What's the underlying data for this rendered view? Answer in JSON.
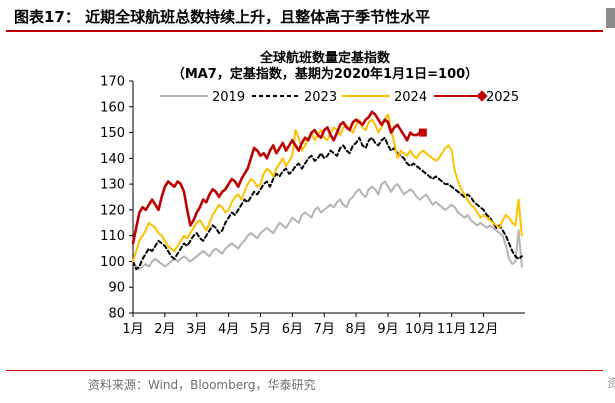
{
  "header": {
    "title": "图表17：  近期全球航班总数持续上升，且整体高于季节性水平",
    "accent_color": "#c00000"
  },
  "source": "资料来源：Wind，Bloomberg，华泰研究",
  "chart_data": {
    "type": "line",
    "title": "全球航班数量定基指数",
    "subtitle": "（MA7，定基指数，基期为2020年1月1日=100）",
    "xlabel": "",
    "ylabel": "",
    "ylim": [
      80,
      170
    ],
    "yticks": [
      80,
      90,
      100,
      110,
      120,
      130,
      140,
      150,
      160,
      170
    ],
    "x_unit": "months (0 = Jan 1, 12 = Dec 31)",
    "xlim": [
      0,
      12.3
    ],
    "x_ticks": [
      {
        "x": 0,
        "label": "1月"
      },
      {
        "x": 1,
        "label": "2月"
      },
      {
        "x": 2,
        "label": "3月"
      },
      {
        "x": 3,
        "label": "4月"
      },
      {
        "x": 4,
        "label": "5月"
      },
      {
        "x": 5,
        "label": "6月"
      },
      {
        "x": 6,
        "label": "7月"
      },
      {
        "x": 7,
        "label": "8月"
      },
      {
        "x": 8,
        "label": "9月"
      },
      {
        "x": 9,
        "label": "10月"
      },
      {
        "x": 10,
        "label": "11月"
      },
      {
        "x": 11,
        "label": "12月"
      }
    ],
    "grid": false,
    "legend": "top",
    "series": [
      {
        "name": "2019",
        "color": "#b4b4b4",
        "style": "solid",
        "x": [
          0,
          0.1,
          0.2,
          0.3,
          0.4,
          0.5,
          0.6,
          0.7,
          0.8,
          0.9,
          1.0,
          1.1,
          1.2,
          1.3,
          1.4,
          1.5,
          1.6,
          1.7,
          1.8,
          1.9,
          2.0,
          2.1,
          2.2,
          2.3,
          2.4,
          2.5,
          2.6,
          2.7,
          2.8,
          2.9,
          3.0,
          3.1,
          3.2,
          3.3,
          3.4,
          3.5,
          3.6,
          3.7,
          3.8,
          3.9,
          4.0,
          4.1,
          4.2,
          4.3,
          4.4,
          4.5,
          4.6,
          4.7,
          4.8,
          4.9,
          5.0,
          5.1,
          5.2,
          5.3,
          5.4,
          5.5,
          5.6,
          5.7,
          5.8,
          5.9,
          6.0,
          6.1,
          6.2,
          6.3,
          6.4,
          6.5,
          6.6,
          6.7,
          6.8,
          6.9,
          7.0,
          7.1,
          7.2,
          7.3,
          7.4,
          7.5,
          7.6,
          7.7,
          7.8,
          7.9,
          8.0,
          8.1,
          8.2,
          8.3,
          8.4,
          8.5,
          8.6,
          8.7,
          8.8,
          8.9,
          9.0,
          9.1,
          9.2,
          9.3,
          9.4,
          9.5,
          9.6,
          9.7,
          9.8,
          9.9,
          10.0,
          10.1,
          10.2,
          10.3,
          10.4,
          10.5,
          10.6,
          10.7,
          10.8,
          10.9,
          11.0,
          11.1,
          11.2,
          11.3,
          11.4,
          11.5,
          11.6,
          11.7,
          11.8,
          11.9,
          12.0,
          12.1,
          12.2
        ],
        "values": [
          100,
          98,
          97,
          98,
          99,
          98,
          100,
          101,
          100,
          99,
          98,
          99,
          100,
          101,
          100,
          101,
          102,
          101,
          100,
          101,
          102,
          103,
          104,
          103,
          102,
          104,
          105,
          104,
          103,
          105,
          106,
          107,
          106,
          105,
          107,
          108,
          110,
          111,
          110,
          109,
          111,
          112,
          113,
          112,
          111,
          113,
          115,
          114,
          113,
          115,
          117,
          116,
          115,
          118,
          119,
          118,
          117,
          120,
          121,
          119,
          120,
          121,
          122,
          121,
          123,
          124,
          122,
          121,
          124,
          125,
          127,
          128,
          126,
          125,
          128,
          129,
          128,
          126,
          130,
          131,
          129,
          127,
          129,
          130,
          128,
          126,
          127,
          128,
          127,
          125,
          124,
          125,
          126,
          124,
          122,
          123,
          122,
          121,
          120,
          121,
          122,
          121,
          119,
          118,
          117,
          118,
          116,
          115,
          114,
          115,
          114,
          113,
          114,
          113,
          112,
          111,
          110,
          106,
          101,
          99,
          100,
          112,
          98
        ]
      },
      {
        "name": "2023",
        "color": "#000000",
        "style": "dashed",
        "x": [
          0,
          0.1,
          0.2,
          0.3,
          0.4,
          0.5,
          0.6,
          0.7,
          0.8,
          0.9,
          1.0,
          1.1,
          1.2,
          1.3,
          1.4,
          1.5,
          1.6,
          1.7,
          1.8,
          1.9,
          2.0,
          2.1,
          2.2,
          2.3,
          2.4,
          2.5,
          2.6,
          2.7,
          2.8,
          2.9,
          3.0,
          3.1,
          3.2,
          3.3,
          3.4,
          3.5,
          3.6,
          3.7,
          3.8,
          3.9,
          4.0,
          4.1,
          4.2,
          4.3,
          4.4,
          4.5,
          4.6,
          4.7,
          4.8,
          4.9,
          5.0,
          5.1,
          5.2,
          5.3,
          5.4,
          5.5,
          5.6,
          5.7,
          5.8,
          5.9,
          6.0,
          6.1,
          6.2,
          6.3,
          6.4,
          6.5,
          6.6,
          6.7,
          6.8,
          6.9,
          7.0,
          7.1,
          7.2,
          7.3,
          7.4,
          7.5,
          7.6,
          7.7,
          7.8,
          7.9,
          8.0,
          8.1,
          8.2,
          8.3,
          8.4,
          8.5,
          8.6,
          8.7,
          8.8,
          8.9,
          9.0,
          9.1,
          9.2,
          9.3,
          9.4,
          9.5,
          9.6,
          9.7,
          9.8,
          9.9,
          10.0,
          10.1,
          10.2,
          10.3,
          10.4,
          10.5,
          10.6,
          10.7,
          10.8,
          10.9,
          11.0,
          11.1,
          11.2,
          11.3,
          11.4,
          11.5,
          11.6,
          11.7,
          11.8,
          11.9,
          12.0,
          12.1,
          12.2
        ],
        "values": [
          100,
          97,
          98,
          101,
          103,
          105,
          104,
          106,
          108,
          107,
          106,
          104,
          102,
          101,
          103,
          105,
          107,
          106,
          108,
          110,
          111,
          109,
          108,
          110,
          112,
          114,
          113,
          111,
          112,
          115,
          117,
          119,
          118,
          120,
          122,
          124,
          123,
          125,
          127,
          126,
          128,
          130,
          131,
          129,
          132,
          134,
          133,
          135,
          136,
          134,
          135,
          137,
          138,
          136,
          138,
          140,
          141,
          139,
          140,
          142,
          140,
          141,
          143,
          142,
          141,
          144,
          145,
          143,
          142,
          145,
          146,
          148,
          145,
          144,
          147,
          148,
          146,
          145,
          147,
          148,
          145,
          143,
          144,
          142,
          141,
          140,
          138,
          137,
          138,
          137,
          136,
          135,
          134,
          133,
          132,
          133,
          132,
          131,
          130,
          130,
          129,
          128,
          127,
          126,
          125,
          126,
          125,
          123,
          122,
          121,
          120,
          118,
          117,
          115,
          113,
          114,
          112,
          110,
          107,
          104,
          102,
          101,
          102
        ]
      },
      {
        "name": "2024",
        "color": "#ffc000",
        "style": "solid",
        "x": [
          0,
          0.1,
          0.2,
          0.3,
          0.4,
          0.5,
          0.6,
          0.7,
          0.8,
          0.9,
          1.0,
          1.1,
          1.2,
          1.3,
          1.4,
          1.5,
          1.6,
          1.7,
          1.8,
          1.9,
          2.0,
          2.1,
          2.2,
          2.3,
          2.4,
          2.5,
          2.6,
          2.7,
          2.8,
          2.9,
          3.0,
          3.1,
          3.2,
          3.3,
          3.4,
          3.5,
          3.6,
          3.7,
          3.8,
          3.9,
          4.0,
          4.1,
          4.2,
          4.3,
          4.4,
          4.5,
          4.6,
          4.7,
          4.8,
          4.9,
          5.0,
          5.1,
          5.2,
          5.3,
          5.4,
          5.5,
          5.6,
          5.7,
          5.8,
          5.9,
          6.0,
          6.1,
          6.2,
          6.3,
          6.4,
          6.5,
          6.6,
          6.7,
          6.8,
          6.9,
          7.0,
          7.1,
          7.2,
          7.3,
          7.4,
          7.5,
          7.6,
          7.7,
          7.8,
          7.9,
          8.0,
          8.1,
          8.2,
          8.3,
          8.4,
          8.5,
          8.6,
          8.7,
          8.8,
          8.9,
          9.0,
          9.1,
          9.2,
          9.3,
          9.4,
          9.5,
          9.6,
          9.7,
          9.8,
          9.9,
          10.0,
          10.1,
          10.2,
          10.3,
          10.4,
          10.5,
          10.6,
          10.7,
          10.8,
          10.9,
          11.0,
          11.1,
          11.2,
          11.3,
          11.4,
          11.5,
          11.6,
          11.7,
          11.8,
          11.9,
          12.0,
          12.1,
          12.2
        ],
        "values": [
          100,
          104,
          108,
          110,
          112,
          115,
          114,
          113,
          111,
          110,
          108,
          106,
          105,
          104,
          106,
          108,
          110,
          109,
          111,
          113,
          115,
          116,
          114,
          112,
          115,
          118,
          120,
          122,
          121,
          119,
          120,
          123,
          125,
          126,
          124,
          127,
          130,
          132,
          131,
          129,
          130,
          134,
          136,
          135,
          133,
          136,
          138,
          140,
          137,
          139,
          141,
          151,
          148,
          143,
          145,
          148,
          150,
          147,
          149,
          151,
          148,
          147,
          150,
          152,
          151,
          149,
          152,
          153,
          151,
          150,
          153,
          155,
          152,
          151,
          154,
          155,
          153,
          150,
          152,
          155,
          157,
          151,
          146,
          140,
          143,
          142,
          141,
          143,
          141,
          140,
          142,
          143,
          142,
          141,
          140,
          139,
          140,
          142,
          144,
          145,
          143,
          135,
          131,
          128,
          126,
          124,
          122,
          121,
          119,
          117,
          118,
          117,
          116,
          115,
          114,
          113,
          116,
          118,
          117,
          115,
          114,
          124,
          110
        ]
      },
      {
        "name": "2025",
        "color": "#c00000",
        "style": "solid",
        "x": [
          0,
          0.1,
          0.2,
          0.3,
          0.4,
          0.5,
          0.6,
          0.7,
          0.8,
          0.9,
          1.0,
          1.1,
          1.2,
          1.3,
          1.4,
          1.5,
          1.6,
          1.7,
          1.8,
          1.9,
          2.0,
          2.1,
          2.2,
          2.3,
          2.4,
          2.5,
          2.6,
          2.7,
          2.8,
          2.9,
          3.0,
          3.1,
          3.2,
          3.3,
          3.4,
          3.5,
          3.6,
          3.7,
          3.8,
          3.9,
          4.0,
          4.1,
          4.2,
          4.3,
          4.4,
          4.5,
          4.6,
          4.7,
          4.8,
          4.9,
          5.0,
          5.1,
          5.2,
          5.3,
          5.4,
          5.5,
          5.6,
          5.7,
          5.8,
          5.9,
          6.0,
          6.1,
          6.2,
          6.3,
          6.4,
          6.5,
          6.6,
          6.7,
          6.8,
          6.9,
          7.0,
          7.1,
          7.2,
          7.3,
          7.4,
          7.5,
          7.6,
          7.7,
          7.8,
          7.9,
          8.0,
          8.1,
          8.2,
          8.3,
          8.4,
          8.5,
          8.6,
          8.7,
          8.8,
          8.9,
          9.0
        ],
        "values": [
          107,
          113,
          119,
          121,
          120,
          122,
          124,
          122,
          120,
          125,
          129,
          131,
          130,
          129,
          131,
          130,
          127,
          120,
          114,
          116,
          119,
          121,
          124,
          123,
          126,
          128,
          127,
          125,
          127,
          128,
          130,
          132,
          131,
          129,
          132,
          134,
          136,
          140,
          144,
          143,
          141,
          142,
          140,
          143,
          145,
          142,
          144,
          146,
          143,
          145,
          147,
          145,
          143,
          146,
          148,
          147,
          150,
          151,
          149,
          148,
          151,
          152,
          149,
          147,
          150,
          153,
          154,
          152,
          151,
          154,
          155,
          154,
          153,
          155,
          156,
          158,
          157,
          155,
          153,
          155,
          154,
          150,
          152,
          153,
          151,
          149,
          147,
          150,
          149,
          149,
          150
        ],
        "end_marker": "square"
      }
    ]
  }
}
